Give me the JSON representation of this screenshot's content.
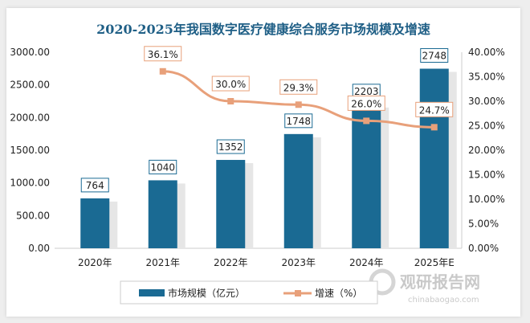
{
  "chart_data": {
    "type": "bar+line",
    "title": "2020-2025年我国数字医疗健康综合服务市场规模及增速",
    "categories": [
      "2020年",
      "2021年",
      "2022年",
      "2023年",
      "2024年",
      "2025年E"
    ],
    "series": [
      {
        "name": "市场规模（亿元）",
        "type": "bar",
        "axis": "left",
        "values": [
          764,
          1040,
          1352,
          1748,
          2203,
          2748
        ],
        "labels": [
          "764",
          "1040",
          "1352",
          "1748",
          "2203",
          "2748"
        ],
        "color": "#1a6a93"
      },
      {
        "name": "增速（%）",
        "type": "line",
        "axis": "right",
        "values": [
          null,
          36.1,
          30.0,
          29.3,
          26.0,
          24.7
        ],
        "labels": [
          "",
          "36.1%",
          "30.0%",
          "29.3%",
          "26.0%",
          "24.7%"
        ],
        "color": "#e8a07a"
      }
    ],
    "y_left": {
      "range": [
        0,
        3000
      ],
      "ticks": [
        "0.00",
        "500.00",
        "1000.00",
        "1500.00",
        "2000.00",
        "2500.00",
        "3000.00"
      ]
    },
    "y_right": {
      "range": [
        0,
        40
      ],
      "ticks": [
        "0.00%",
        "5.00%",
        "10.00%",
        "15.00%",
        "20.00%",
        "25.00%",
        "30.00%",
        "35.00%",
        "40.00%"
      ]
    },
    "grid": false,
    "legend": "bottom"
  },
  "watermark": {
    "text": "观研报告网",
    "url_text": "chinabaogao.com"
  }
}
